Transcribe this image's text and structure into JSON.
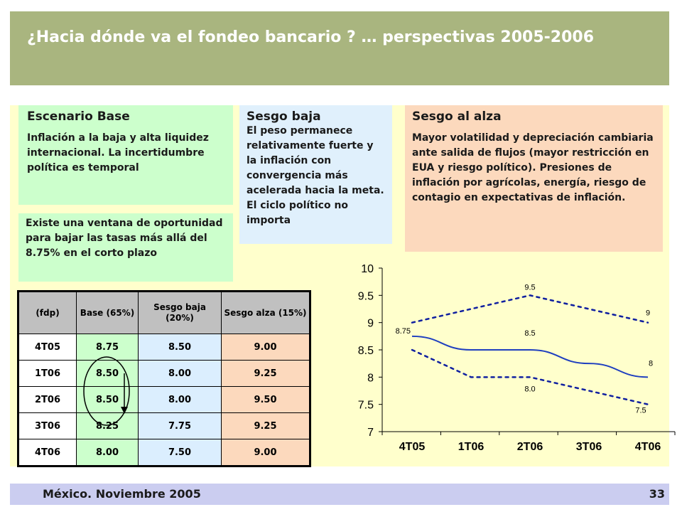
{
  "title": "¿Hacia dónde va el fondeo bancario ? … perspectivas 2005-2006",
  "base_box": {
    "heading": "Escenario Base",
    "body": "Inflación a la baja y alta liquidez internacional. La incertidumbre política es temporal"
  },
  "ventana_text": "Existe una ventana de oportunidad para bajar las tasas más allá del 8.75% en el corto plazo",
  "baja_box": {
    "heading": "Sesgo baja",
    "body": "El peso permanece relativamente fuerte y la inflación con convergencia más acelerada hacia la meta. El ciclo político no importa"
  },
  "alza_box": {
    "heading": "Sesgo al alza",
    "body": "Mayor volatilidad y depreciación cambiaria ante salida de flujos (mayor restricción en EUA y riesgo político). Presiones de inflación por agrícolas, energía, riesgo de contagio en expectativas de inflación."
  },
  "table": {
    "headers": [
      "(fdp)",
      "Base (65%)",
      "Sesgo baja (20%)",
      "Sesgo alza (15%)"
    ],
    "rows": [
      [
        "4T05",
        "8.75",
        "8.50",
        "9.00"
      ],
      [
        "1T06",
        "8.50",
        "8.00",
        "9.25"
      ],
      [
        "2T06",
        "8.50",
        "8.00",
        "9.50"
      ],
      [
        "3T06",
        "8.25",
        "7.75",
        "9.25"
      ],
      [
        "4T06",
        "8.00",
        "7.50",
        "9.00"
      ]
    ]
  },
  "footer": {
    "left": "México. Noviembre 2005",
    "right": "33"
  },
  "chart_data": {
    "type": "line",
    "categories": [
      "4T05",
      "1T06",
      "2T06",
      "3T06",
      "4T06"
    ],
    "ylim": [
      7,
      10
    ],
    "yticks": [
      "7",
      "7.5",
      "8",
      "8.5",
      "9",
      "9.5",
      "10"
    ],
    "series": [
      {
        "values": [
          8.75,
          8.5,
          8.5,
          8.25,
          8.0
        ],
        "style": "solid",
        "color": "#1f3fbf"
      },
      {
        "values": [
          9.0,
          9.25,
          9.5,
          9.25,
          9.0
        ],
        "style": "dotted",
        "color": "#1020a0"
      },
      {
        "values": [
          8.5,
          8.0,
          8.0,
          7.75,
          7.5
        ],
        "style": "dotted",
        "color": "#1020a0"
      }
    ],
    "annotations": [
      "9.5",
      "9",
      "8.75",
      "8.5",
      "8",
      "8.0",
      "7.5"
    ]
  }
}
